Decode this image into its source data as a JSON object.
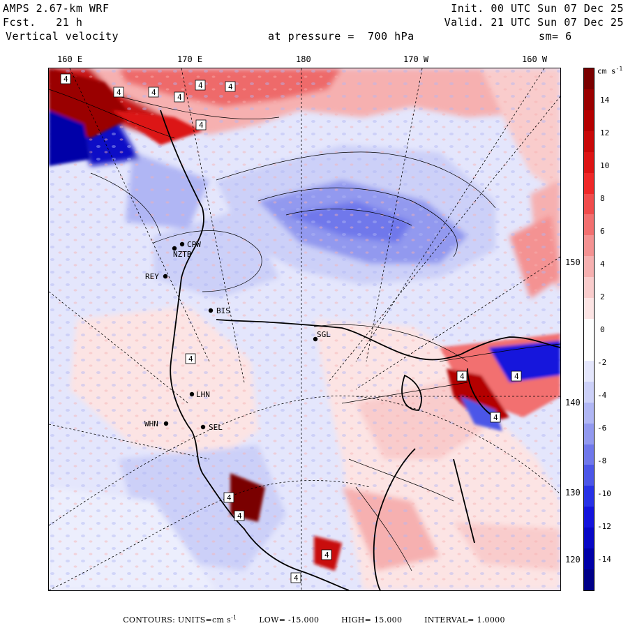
{
  "header": {
    "model": "AMPS 2.67-km WRF",
    "forecast": "Fcst.   21 h",
    "field": "Vertical velocity",
    "init": "Init. 00 UTC Sun 07 Dec 25",
    "valid": "Valid. 21 UTC Sun 07 Dec 25",
    "pressure": "at pressure =  700 hPa",
    "smooth": "sm= 6"
  },
  "top_ticks": [
    "160 E",
    "170 E",
    "180",
    "170 W",
    "160 W"
  ],
  "right_ticks": [
    "150 W",
    "140 W",
    "130 W",
    "120 W"
  ],
  "colorbar": {
    "unit": "cm s",
    "unit_exp": "-1",
    "labels": [
      "14",
      "12",
      "10",
      "8",
      "6",
      "4",
      "2",
      "0",
      "-2",
      "-4",
      "-6",
      "-8",
      "-10",
      "-12",
      "-14"
    ],
    "colors": [
      "#7a0000",
      "#9a0000",
      "#b40000",
      "#c80808",
      "#dc1414",
      "#ee2828",
      "#f04c4c",
      "#f27070",
      "#f49292",
      "#f6b0b0",
      "#f9cccc",
      "#fce4e4",
      "#ffffff",
      "#ffffff",
      "#e4e6fc",
      "#ccd0f8",
      "#b0b6f4",
      "#9299ef",
      "#7078eb",
      "#4c56e8",
      "#2832e6",
      "#1414dc",
      "#0808c6",
      "#0000a8",
      "#000088"
    ]
  },
  "stations": [
    {
      "name": "CPW"
    },
    {
      "name": "NZTB"
    },
    {
      "name": "REY"
    },
    {
      "name": "BIS"
    },
    {
      "name": "SGL"
    },
    {
      "name": "LHN"
    },
    {
      "name": "SEL"
    },
    {
      "name": "WHN"
    }
  ],
  "max_marker": "4",
  "footer": {
    "contours": "CONTOURS:  UNITS=cm s",
    "contours_exp": "-1",
    "low": "LOW=  -15.000",
    "high": "HIGH=  15.000",
    "interval": "INTERVAL=   1.0000"
  },
  "colors": {
    "land_base": "#e4e6fc",
    "ocean_red": "#f6b0b0",
    "ocean_blue": "#b0b6f4",
    "accent_red": "#b40000",
    "accent_blue": "#1414dc"
  }
}
